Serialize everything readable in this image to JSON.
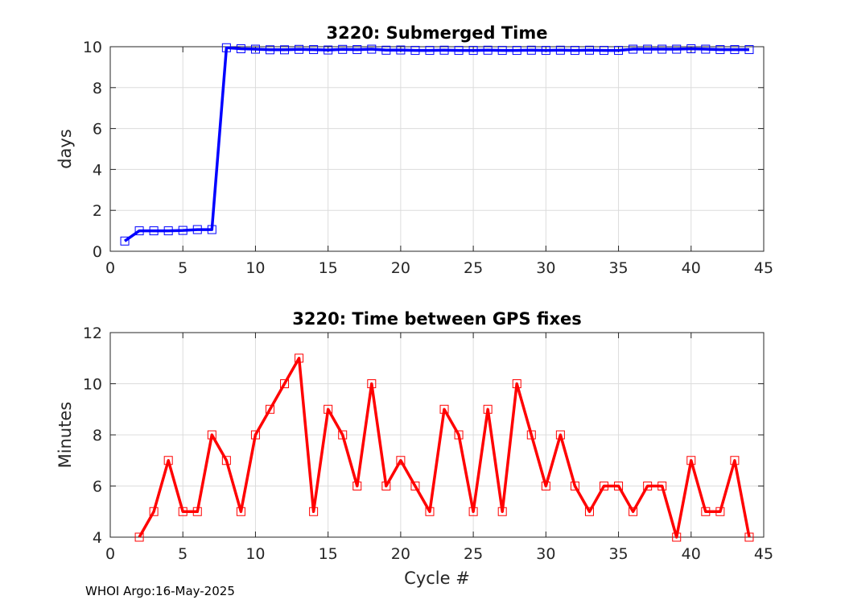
{
  "footer": "WHOI Argo:16-May-2025",
  "chart_data": [
    {
      "type": "line",
      "title": "3220: Submerged Time",
      "xlabel": "",
      "ylabel": "days",
      "xlim": [
        0,
        45
      ],
      "ylim": [
        0,
        10
      ],
      "xticks": [
        0,
        5,
        10,
        15,
        20,
        25,
        30,
        35,
        40,
        45
      ],
      "yticks": [
        0,
        2,
        4,
        6,
        8,
        10
      ],
      "grid": true,
      "color": "#0000ff",
      "marker": "square",
      "x": [
        1,
        2,
        3,
        4,
        5,
        6,
        7,
        8,
        9,
        10,
        11,
        12,
        13,
        14,
        15,
        16,
        17,
        18,
        19,
        20,
        21,
        22,
        23,
        24,
        25,
        26,
        27,
        28,
        29,
        30,
        31,
        32,
        33,
        34,
        35,
        36,
        37,
        38,
        39,
        40,
        41,
        42,
        43,
        44
      ],
      "y": [
        0.5,
        1.0,
        1.0,
        1.0,
        1.02,
        1.06,
        1.06,
        9.95,
        9.9,
        9.88,
        9.85,
        9.85,
        9.87,
        9.86,
        9.84,
        9.87,
        9.86,
        9.88,
        9.83,
        9.84,
        9.82,
        9.82,
        9.83,
        9.82,
        9.82,
        9.83,
        9.82,
        9.82,
        9.83,
        9.82,
        9.83,
        9.82,
        9.83,
        9.82,
        9.82,
        9.88,
        9.88,
        9.88,
        9.88,
        9.9,
        9.88,
        9.86,
        9.86,
        9.86
      ]
    },
    {
      "type": "line",
      "title": "3220: Time between GPS fixes",
      "xlabel": "Cycle #",
      "ylabel": "Minutes",
      "xlim": [
        0,
        45
      ],
      "ylim": [
        4,
        12
      ],
      "xticks": [
        0,
        5,
        10,
        15,
        20,
        25,
        30,
        35,
        40,
        45
      ],
      "yticks": [
        4,
        6,
        8,
        10,
        12
      ],
      "grid": true,
      "color": "#ff0000",
      "marker": "square",
      "x": [
        2,
        3,
        4,
        5,
        6,
        7,
        8,
        9,
        10,
        11,
        12,
        13,
        14,
        15,
        16,
        17,
        18,
        19,
        20,
        21,
        22,
        23,
        24,
        25,
        26,
        27,
        28,
        29,
        30,
        31,
        32,
        33,
        34,
        35,
        36,
        37,
        38,
        39,
        40,
        41,
        42,
        43,
        44
      ],
      "y": [
        4,
        5,
        7,
        5,
        5,
        8,
        7,
        5,
        8,
        9,
        10,
        11,
        5,
        9,
        8,
        6,
        10,
        6,
        7,
        6,
        5,
        9,
        8,
        5,
        9,
        5,
        10,
        8,
        6,
        8,
        6,
        5,
        6,
        6,
        5,
        6,
        6,
        4,
        7,
        5,
        5,
        7,
        4
      ]
    }
  ]
}
